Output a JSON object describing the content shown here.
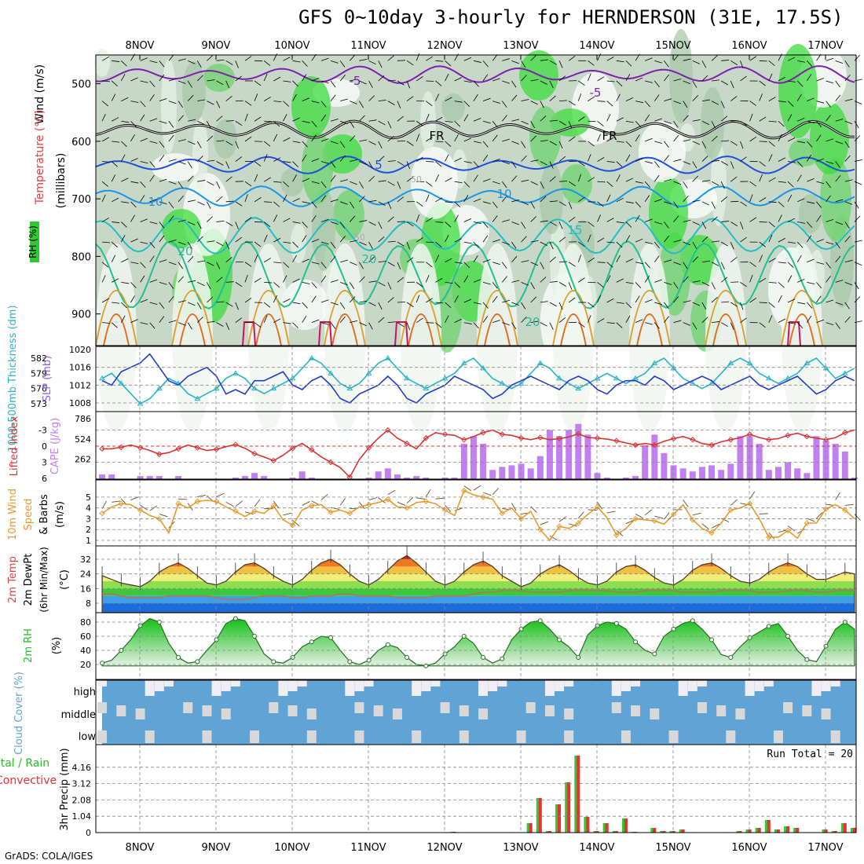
{
  "title": "GFS 0~10day 3-hourly for HERNDERSON (31E, 17.5S)",
  "credit": "GrADS: COLA/IGES",
  "colors": {
    "rh_green": "#32c832",
    "slp_line": "#1e3cc8",
    "thickness_line": "#2ab4c8",
    "lifted_index": "#d83232",
    "cape_bar": "#c080f0",
    "wind_speed": "#e89a2a",
    "cloud": "#5fa4d4",
    "precip_total": "#32c832",
    "precip_conv": "#e83232",
    "rh2m": "#20c020"
  },
  "chart_data": [
    {
      "type": "heatmap",
      "panel": "upper_air",
      "ylabel_wind": "Wind (m/s)",
      "ylabel_temp": "Temperature (°C)",
      "ylabel_rh": "RH (%)",
      "ylabel_pres": "(millibars)",
      "x_ticks": [
        "8NOV",
        "9NOV",
        "10NOV",
        "11NOV",
        "12NOV",
        "13NOV",
        "14NOV",
        "15NOV",
        "16NOV",
        "17NOV"
      ],
      "y_ticks": [
        500,
        600,
        700,
        800,
        900
      ],
      "ylim": [
        450,
        950
      ],
      "temp_labels": [
        "-5",
        "-5",
        "FR",
        "FR",
        "5",
        "10",
        "10",
        "15",
        "20",
        "20",
        "20"
      ],
      "rh_labels": [
        "50",
        "50"
      ]
    },
    {
      "type": "line",
      "panel": "slp_thickness",
      "ylabel_left": "1000-500mb Thickness (dm)",
      "ylabel_right": "SLP (mb)",
      "y_ticks_thickness": [
        573,
        576,
        579,
        582
      ],
      "y_ticks_slp": [
        1008,
        1012,
        1016,
        1020
      ],
      "series": [
        {
          "name": "SLP",
          "values": [
            1013,
            1012,
            1015,
            1016,
            1017,
            1019,
            1016,
            1013,
            1012,
            1014,
            1015,
            1016,
            1014,
            1010,
            1011,
            1010,
            1013,
            1013,
            1014,
            1015,
            1012,
            1011,
            1013,
            1014,
            1012,
            1009,
            1008,
            1010,
            1011,
            1012,
            1014,
            1012,
            1009,
            1008,
            1010,
            1011,
            1012,
            1014,
            1013,
            1012,
            1011,
            1009,
            1010,
            1012,
            1013,
            1014,
            1013,
            1012,
            1011,
            1013,
            1014,
            1013,
            1011,
            1010,
            1012,
            1013,
            1013,
            1012,
            1014,
            1013,
            1011,
            1012,
            1013,
            1014,
            1013,
            1011,
            1012,
            1013,
            1014,
            1012,
            1011,
            1012,
            1013,
            1014,
            1012,
            1010,
            1011,
            1013,
            1014,
            1013
          ]
        },
        {
          "name": "Thickness",
          "values": [
            578,
            579,
            577,
            575,
            573,
            574,
            576,
            578,
            577,
            575,
            574,
            575,
            576,
            578,
            579,
            578,
            576,
            575,
            576,
            577,
            578,
            580,
            582,
            581,
            579,
            577,
            576,
            577,
            579,
            581,
            582,
            580,
            578,
            577,
            576,
            577,
            578,
            579,
            581,
            582,
            580,
            578,
            577,
            576,
            577,
            579,
            581,
            580,
            578,
            577,
            576,
            577,
            578,
            579,
            578,
            577,
            578,
            579,
            581,
            582,
            580,
            578,
            577,
            576,
            577,
            579,
            581,
            582,
            581,
            579,
            578,
            577,
            578,
            579,
            581,
            582,
            580,
            578,
            579,
            580
          ]
        }
      ]
    },
    {
      "type": "bar",
      "panel": "cape_li",
      "ylabel_left": "Lifted Index",
      "ylabel_right": "CAPE (J/kg)",
      "y_ticks_li": [
        -3,
        0,
        3,
        6
      ],
      "y_ticks_cape": [
        262,
        524,
        786
      ],
      "cape": [
        60,
        60,
        0,
        0,
        40,
        40,
        40,
        0,
        40,
        0,
        0,
        0,
        0,
        0,
        20,
        40,
        80,
        40,
        0,
        0,
        20,
        100,
        20,
        0,
        0,
        0,
        0,
        0,
        20,
        100,
        140,
        60,
        20,
        40,
        20,
        0,
        20,
        20,
        460,
        560,
        460,
        120,
        160,
        180,
        200,
        140,
        300,
        640,
        560,
        640,
        720,
        580,
        80,
        20,
        0,
        20,
        40,
        440,
        580,
        340,
        180,
        140,
        100,
        160,
        180,
        120,
        200,
        560,
        560,
        460,
        120,
        160,
        220,
        140,
        80,
        560,
        500,
        460,
        360,
        20
      ],
      "lifted_index": [
        0.5,
        0.5,
        0.2,
        -0.2,
        0.3,
        0.8,
        1.5,
        1.2,
        0.5,
        -0.2,
        0.3,
        0.8,
        0.6,
        0.1,
        -0.3,
        0.4,
        1.4,
        2.0,
        2.7,
        1.7,
        0.4,
        -0.5,
        0.7,
        2.0,
        3.0,
        4.0,
        5.8,
        2.5,
        0.3,
        -1.5,
        -3.0,
        -1.5,
        -0.5,
        0.5,
        -1.5,
        -2.5,
        -2.2,
        -2.0,
        -1.2,
        -1.8,
        -2.5,
        -3.0,
        -2.2,
        -2.0,
        -1.5,
        -1.2,
        -1.6,
        -1.2,
        -1.4,
        -1.7,
        -2.3,
        -1.6,
        -1.5,
        -1.3,
        -1.0,
        -0.6,
        -0.2,
        -0.5,
        -0.2,
        -0.9,
        -1.4,
        -1.8,
        -1.2,
        -0.5,
        -0.2,
        -0.8,
        -1.2,
        -1.6,
        -2.2,
        -1.6,
        -1.2,
        -1.4,
        -2.0,
        -2.4,
        -1.8,
        -1.5,
        -1.2,
        -1.6,
        -2.5,
        -3.0
      ]
    },
    {
      "type": "line",
      "panel": "wind10m",
      "ylabel": "10m Wind Speed & Barbs (m/s)",
      "y_ticks": [
        1,
        2,
        3,
        4,
        5
      ],
      "values": [
        3.5,
        4.1,
        4.4,
        4.3,
        3.8,
        3.3,
        3.0,
        1.7,
        4.4,
        4.0,
        4.6,
        4.7,
        4.6,
        4.1,
        3.7,
        3.2,
        3.7,
        3.5,
        4.2,
        2.9,
        2.4,
        3.8,
        4.2,
        4.3,
        3.6,
        3.8,
        3.5,
        4.1,
        4.3,
        4.5,
        4.8,
        4.1,
        4.0,
        4.5,
        4.6,
        4.4,
        3.8,
        3.3,
        5.6,
        5.2,
        5.0,
        4.8,
        3.5,
        4.0,
        3.0,
        3.7,
        2.0,
        1.0,
        2.3,
        2.1,
        2.6,
        3.4,
        4.1,
        3.1,
        1.5,
        2.1,
        3.0,
        2.9,
        2.8,
        2.5,
        3.4,
        4.3,
        2.9,
        2.1,
        1.7,
        2.6,
        3.8,
        4.0,
        4.4,
        3.0,
        1.3,
        1.3,
        1.9,
        1.2,
        2.6,
        2.6,
        3.9,
        4.3,
        3.8,
        3.0
      ]
    },
    {
      "type": "area",
      "panel": "temp2m",
      "ylabel": "2m Temp 2m DewPt (6hr Min/Max) (°C)",
      "y_ticks": [
        8,
        16,
        24,
        32
      ],
      "temperature": [
        23,
        21,
        19,
        18,
        17,
        20,
        25,
        28,
        30,
        27,
        23,
        19,
        18,
        20,
        25,
        29,
        30,
        27,
        23,
        20,
        18,
        21,
        26,
        30,
        32,
        29,
        24,
        20,
        18,
        21,
        26,
        31,
        34,
        30,
        25,
        20,
        18,
        20,
        25,
        29,
        31,
        28,
        23,
        20,
        17,
        19,
        24,
        27,
        29,
        26,
        22,
        19,
        18,
        20,
        25,
        28,
        29,
        26,
        22,
        19,
        18,
        21,
        26,
        29,
        30,
        27,
        23,
        20,
        19,
        21,
        25,
        28,
        30,
        28,
        24,
        21,
        21,
        23,
        25,
        24
      ],
      "dewpoint": [
        13,
        13,
        12,
        11,
        11,
        11,
        11,
        12,
        12,
        12,
        12,
        12,
        11,
        10,
        10,
        10,
        11,
        12,
        12,
        12,
        11,
        11,
        12,
        12,
        12,
        13,
        13,
        12,
        12,
        12,
        12,
        11,
        11,
        11,
        11,
        12,
        12,
        12,
        12,
        13,
        14,
        14,
        15,
        15,
        15,
        14,
        14,
        14,
        14,
        15,
        15,
        15,
        15,
        15,
        14,
        14,
        14,
        15,
        15,
        15,
        15,
        14,
        14,
        14,
        14,
        15,
        15,
        15,
        15,
        14,
        14,
        14,
        15,
        15,
        15,
        14,
        14,
        15,
        15,
        15
      ]
    },
    {
      "type": "area",
      "panel": "rh2m",
      "ylabel": "2m RH (%)",
      "y_ticks": [
        20,
        40,
        60,
        80
      ],
      "values": [
        22,
        26,
        40,
        55,
        75,
        85,
        80,
        50,
        30,
        22,
        24,
        40,
        55,
        78,
        85,
        82,
        60,
        35,
        24,
        22,
        30,
        45,
        52,
        60,
        58,
        40,
        24,
        20,
        26,
        40,
        48,
        44,
        30,
        20,
        18,
        22,
        35,
        45,
        60,
        50,
        30,
        22,
        28,
        55,
        70,
        80,
        82,
        70,
        55,
        45,
        30,
        62,
        75,
        80,
        78,
        70,
        52,
        40,
        35,
        60,
        70,
        78,
        82,
        70,
        55,
        34,
        30,
        45,
        58,
        66,
        74,
        78,
        60,
        40,
        27,
        24,
        46,
        70,
        80,
        70
      ]
    },
    {
      "type": "heatmap",
      "panel": "cloud",
      "ylabel": "Cloud Cover (%)",
      "rows": [
        "high",
        "middle",
        "low"
      ]
    },
    {
      "type": "bar",
      "panel": "precip",
      "ylabel_left": "Total / Rain",
      "ylabel_left2": "Convective",
      "ylabel_right": "3hr Precip (mm)",
      "annotation": "Run Total = 20",
      "y_ticks": [
        1.04,
        2.08,
        3.12,
        4.16
      ],
      "total": [
        0,
        0,
        0,
        0,
        0,
        0,
        0,
        0,
        0,
        0,
        0,
        0,
        0,
        0,
        0,
        0,
        0,
        0,
        0,
        0,
        0,
        0,
        0,
        0,
        0,
        0,
        0,
        0,
        0,
        0,
        0,
        0,
        0,
        0,
        0,
        0,
        0,
        0.05,
        0,
        0,
        0,
        0,
        0,
        0,
        0,
        0.6,
        2.2,
        0.1,
        1.8,
        3.2,
        4.9,
        1.0,
        0.1,
        0.6,
        0.1,
        0.9,
        0.05,
        0,
        0.3,
        0.1,
        0.1,
        0.2,
        0,
        0,
        0,
        0,
        0,
        0.1,
        0.2,
        0.3,
        0.8,
        0.2,
        0.4,
        0.3,
        0,
        0,
        0.2,
        0.1,
        0.6,
        0.3
      ],
      "convective": [
        0,
        0,
        0,
        0,
        0,
        0,
        0,
        0,
        0,
        0,
        0,
        0,
        0,
        0,
        0,
        0,
        0,
        0,
        0,
        0,
        0,
        0,
        0,
        0,
        0,
        0,
        0,
        0,
        0,
        0,
        0,
        0,
        0,
        0,
        0,
        0,
        0,
        0.05,
        0,
        0,
        0,
        0,
        0,
        0,
        0,
        0.6,
        2.2,
        0.1,
        1.8,
        3.2,
        4.9,
        1.0,
        0.1,
        0.6,
        0.1,
        0.9,
        0.05,
        0,
        0.3,
        0.1,
        0.1,
        0.2,
        0,
        0,
        0,
        0,
        0,
        0.1,
        0.2,
        0.3,
        0.8,
        0.2,
        0.4,
        0.3,
        0,
        0,
        0.2,
        0.1,
        0.6,
        0.3
      ]
    }
  ]
}
